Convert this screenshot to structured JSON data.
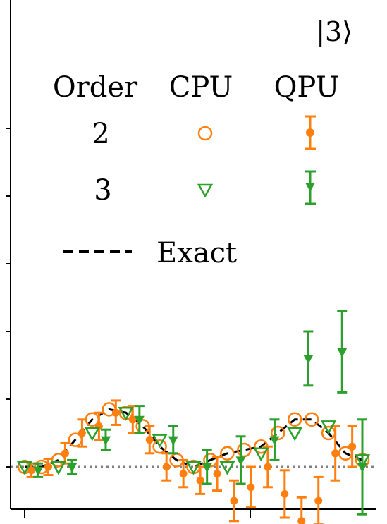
{
  "chart_data": {
    "type": "scatter",
    "title": "|3⟩",
    "xlabel": "",
    "ylabel": "",
    "xlim": [
      0,
      1
    ],
    "ylim": [
      -0.05,
      1.1
    ],
    "grid": false,
    "legend": {
      "placement": "top",
      "headers": [
        "Order",
        "CPU",
        "QPU"
      ],
      "rows": [
        {
          "order": "2",
          "color": "#ff7f0e",
          "cpu_marker": "circle-open",
          "qpu_marker": "circle-filled-errorbar"
        },
        {
          "order": "3",
          "color": "#2ca02c",
          "cpu_marker": "triangle-down-open",
          "qpu_marker": "triangle-down-filled-errorbar"
        }
      ],
      "exact_label": "Exact"
    },
    "reference_line": {
      "y": 0.0,
      "style": "dotted",
      "color": "#808080"
    },
    "exact": {
      "x": [
        0.0,
        0.05,
        0.1,
        0.15,
        0.2,
        0.25,
        0.3,
        0.35,
        0.4,
        0.45,
        0.5,
        0.55,
        0.6,
        0.65,
        0.7,
        0.75,
        0.8,
        0.85,
        0.9,
        0.95,
        1.0
      ],
      "y": [
        0.0,
        0.0,
        0.01,
        0.04,
        0.07,
        0.085,
        0.08,
        0.06,
        0.03,
        0.01,
        0.0,
        0.01,
        0.02,
        0.025,
        0.03,
        0.05,
        0.07,
        0.07,
        0.05,
        0.02,
        0.01
      ]
    },
    "series": [
      {
        "order": "2",
        "kind": "CPU",
        "x": [
          0.0,
          0.05,
          0.1,
          0.15,
          0.2,
          0.25,
          0.3,
          0.35,
          0.4,
          0.45,
          0.5,
          0.55,
          0.6,
          0.65,
          0.7,
          0.75,
          0.8,
          0.85,
          0.9,
          0.95,
          1.0
        ],
        "y": [
          0.0,
          0.0,
          0.01,
          0.04,
          0.07,
          0.085,
          0.08,
          0.06,
          0.03,
          0.01,
          0.0,
          0.01,
          0.02,
          0.025,
          0.03,
          0.05,
          0.07,
          0.07,
          0.05,
          0.02,
          0.01
        ]
      },
      {
        "order": "2",
        "kind": "QPU",
        "x": [
          0.02,
          0.07,
          0.12,
          0.17,
          0.22,
          0.27,
          0.32,
          0.37,
          0.42,
          0.47,
          0.52,
          0.57,
          0.62,
          0.67,
          0.72,
          0.77,
          0.82,
          0.87,
          0.92,
          0.97
        ],
        "y": [
          -0.005,
          0.0,
          0.02,
          0.05,
          0.06,
          0.08,
          0.07,
          0.04,
          0.0,
          -0.01,
          -0.02,
          -0.01,
          -0.05,
          -0.03,
          0.0,
          -0.04,
          -0.08,
          -0.05,
          0.02,
          0.03
        ],
        "err": [
          0.01,
          0.012,
          0.015,
          0.02,
          0.02,
          0.018,
          0.02,
          0.02,
          0.02,
          0.02,
          0.02,
          0.025,
          0.03,
          0.03,
          0.03,
          0.035,
          0.035,
          0.035,
          0.04,
          0.03
        ]
      },
      {
        "order": "3",
        "kind": "CPU",
        "x": [
          0.0,
          0.1,
          0.2,
          0.3,
          0.4,
          0.5,
          0.6,
          0.7,
          0.8,
          0.9,
          1.0
        ],
        "y": [
          0.0,
          0.0,
          0.05,
          0.08,
          0.04,
          0.0,
          0.0,
          0.02,
          0.05,
          0.06,
          0.01
        ]
      },
      {
        "order": "3",
        "kind": "QPU",
        "x": [
          0.04,
          0.14,
          0.24,
          0.34,
          0.44,
          0.54,
          0.64,
          0.74,
          0.84,
          0.94,
          1.0
        ],
        "y": [
          -0.005,
          0.0,
          0.04,
          0.07,
          0.04,
          0.0,
          0.01,
          0.04,
          0.16,
          0.17,
          0.0
        ],
        "err": [
          0.01,
          0.01,
          0.015,
          0.02,
          0.02,
          0.025,
          0.035,
          0.03,
          0.04,
          0.06,
          0.07
        ]
      }
    ]
  }
}
